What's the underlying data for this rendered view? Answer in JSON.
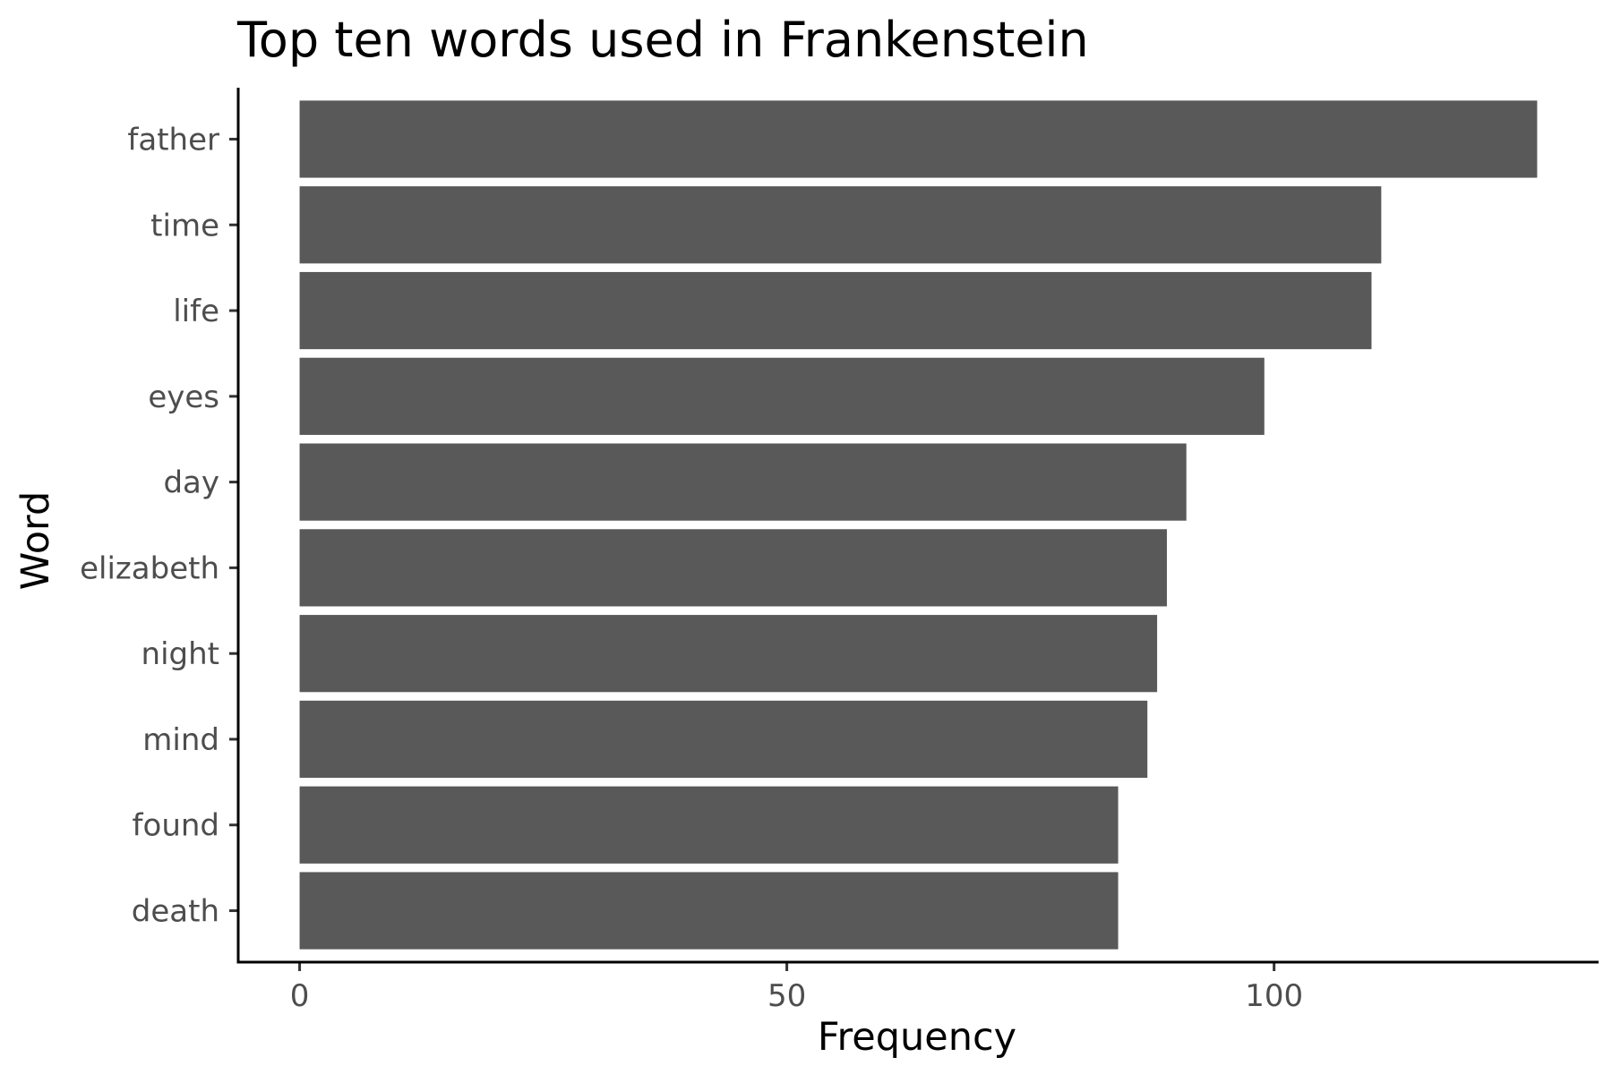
{
  "chart_data": {
    "type": "bar",
    "orientation": "horizontal",
    "title": "Top ten words used in Frankenstein",
    "xlabel": "Frequency",
    "ylabel": "Word",
    "categories": [
      "father",
      "time",
      "life",
      "eyes",
      "day",
      "elizabeth",
      "night",
      "mind",
      "found",
      "death"
    ],
    "values": [
      127,
      111,
      110,
      99,
      91,
      89,
      88,
      87,
      84,
      84
    ],
    "xlim": [
      -6.3,
      133.3
    ],
    "xticks": [
      0,
      50,
      100
    ],
    "xtick_labels": [
      "0",
      "50",
      "100"
    ],
    "grid": false,
    "legend": "none",
    "bar_color": "#595959"
  }
}
